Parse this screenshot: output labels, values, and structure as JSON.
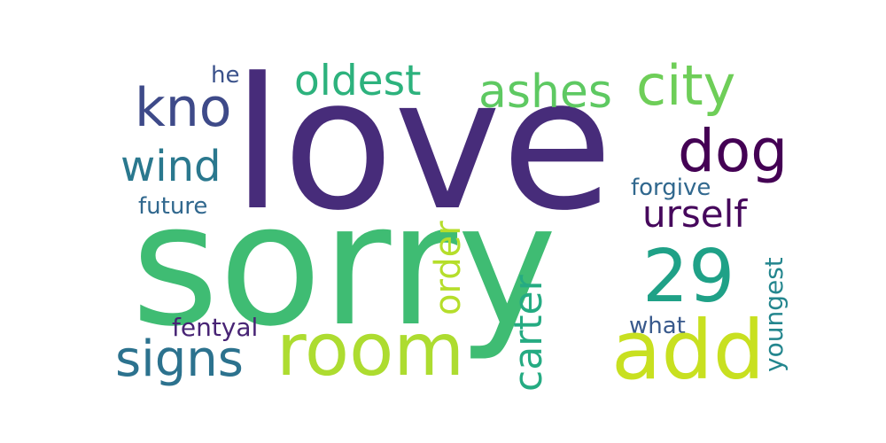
{
  "wordcloud": {
    "words": {
      "love": {
        "text": "love",
        "color": "#472c7a"
      },
      "sorry": {
        "text": "sorry",
        "color": "#3fbc73"
      },
      "room": {
        "text": "room",
        "color": "#addc30"
      },
      "add": {
        "text": "add",
        "color": "#c8e020"
      },
      "city": {
        "text": "city",
        "color": "#6ece58"
      },
      "ashes": {
        "text": "ashes",
        "color": "#5ec962"
      },
      "oldest": {
        "text": "oldest",
        "color": "#2db27d"
      },
      "kno": {
        "text": "kno",
        "color": "#3e4a89"
      },
      "he": {
        "text": "he",
        "color": "#3b528b"
      },
      "dog": {
        "text": "dog",
        "color": "#440154"
      },
      "wind": {
        "text": "wind",
        "color": "#2a788e"
      },
      "future": {
        "text": "future",
        "color": "#31688e"
      },
      "forgive": {
        "text": "forgive",
        "color": "#31688e"
      },
      "urself": {
        "text": "urself",
        "color": "#46085c"
      },
      "n29": {
        "text": "29",
        "color": "#1fa187"
      },
      "fentyal": {
        "text": "fentyal",
        "color": "#482475"
      },
      "signs": {
        "text": "signs",
        "color": "#2c728e"
      },
      "what": {
        "text": "what",
        "color": "#38598c"
      },
      "order": {
        "text": "order",
        "color": "#b5de2b"
      },
      "carter": {
        "text": "carter",
        "color": "#25ab82"
      },
      "youngest": {
        "text": "youngest",
        "color": "#24868e"
      }
    }
  }
}
